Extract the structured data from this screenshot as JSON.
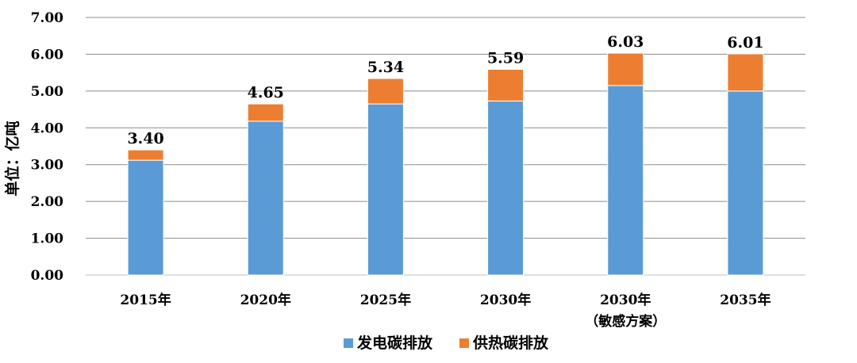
{
  "chart_data": {
    "type": "bar",
    "stacked": true,
    "ylabel": "单位：亿吨",
    "ylim": [
      0,
      7
    ],
    "y_ticks": [
      "0.00",
      "1.00",
      "2.00",
      "3.00",
      "4.00",
      "5.00",
      "6.00",
      "7.00"
    ],
    "grid": true,
    "legend_position": "bottom",
    "categories": [
      [
        "2015年"
      ],
      [
        "2020年"
      ],
      [
        "2025年"
      ],
      [
        "2030年"
      ],
      [
        "2030年",
        "（敏感方案）"
      ],
      [
        "2035年"
      ]
    ],
    "series": [
      {
        "name": "发电碳排放",
        "color": "#5B9BD5",
        "values": [
          3.12,
          4.18,
          4.65,
          4.73,
          5.15,
          5.0
        ]
      },
      {
        "name": "供热碳排放",
        "color": "#ED7D31",
        "values": [
          0.28,
          0.47,
          0.69,
          0.86,
          0.88,
          1.01
        ]
      }
    ],
    "totals": [
      "3.40",
      "4.65",
      "5.34",
      "5.59",
      "6.03",
      "6.01"
    ]
  }
}
